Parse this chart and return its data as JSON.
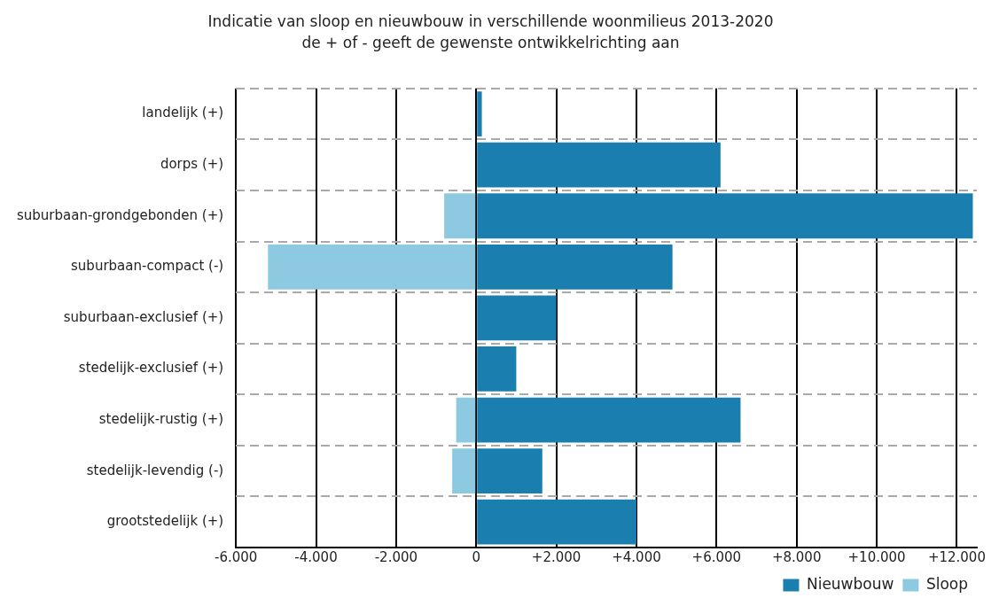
{
  "chart_data": {
    "type": "bar",
    "orientation": "horizontal",
    "stacked": true,
    "title": "Indicatie van sloop en nieuwbouw in verschillende woonmilieus 2013-2020",
    "subtitle": "de + of - geeft de gewenste ontwikkelrichting aan",
    "categories": [
      "landelijk (+)",
      "dorps (+)",
      "suburbaan-grondgebonden (+)",
      "suburbaan-compact (-)",
      "suburbaan-exclusief (+)",
      "stedelijk-exclusief (+)",
      "stedelijk-rustig (+)",
      "stedelijk-levendig (-)",
      "grootstedelijk (+)"
    ],
    "series": [
      {
        "name": "Nieuwbouw",
        "color": "#1a7fae",
        "values": [
          140,
          6100,
          12400,
          4900,
          2000,
          1000,
          6600,
          1650,
          4000
        ]
      },
      {
        "name": "Sloop",
        "color": "#8ec9e2",
        "values": [
          null,
          null,
          -800,
          -5200,
          null,
          null,
          -500,
          -600,
          null
        ]
      }
    ],
    "xlim": [
      -6000,
      12500
    ],
    "xticks": [
      {
        "value": -6000,
        "label": "-6.000"
      },
      {
        "value": -4000,
        "label": "-4.000"
      },
      {
        "value": -2000,
        "label": "-2.000"
      },
      0,
      {
        "value": 2000,
        "label": "+2.000"
      },
      {
        "value": 4000,
        "label": "+4.000"
      },
      {
        "value": 6000,
        "label": "+6.000"
      },
      {
        "value": 8000,
        "label": "+8.000"
      },
      {
        "value": 10000,
        "label": "+10.000"
      },
      {
        "value": 12000,
        "label": "+12.000"
      }
    ],
    "grid": true,
    "legend": "bottom right"
  }
}
